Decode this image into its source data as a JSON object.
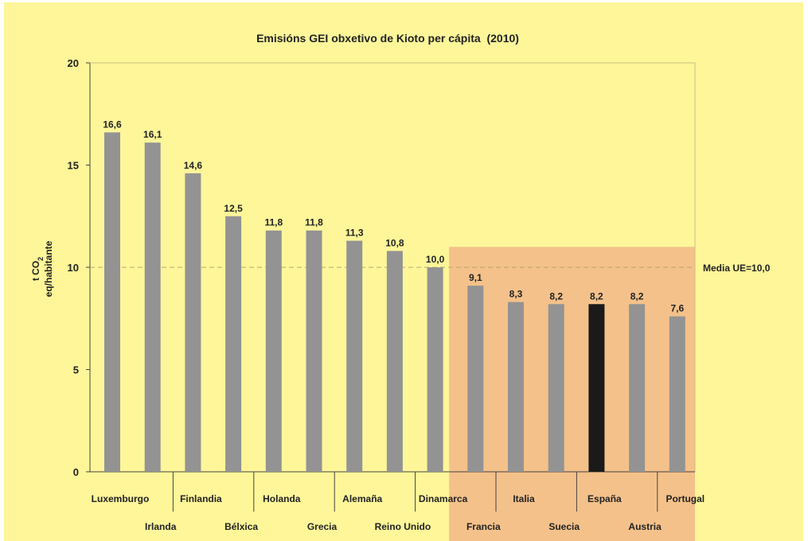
{
  "chart_data": {
    "type": "bar",
    "title": "Emisións GEI obxetivo de Kioto per cápita  (2010)",
    "ylabel_line1": "t CO",
    "ylabel_sub": "2",
    "ylabel_line2": "eq/habitante",
    "xlabel": "",
    "ylim": [
      0,
      20
    ],
    "yticks": [
      0,
      5,
      10,
      15,
      20
    ],
    "categories": [
      "Luxemburgo",
      "Irlanda",
      "Finlandia",
      "Bélxica",
      "Holanda",
      "Grecia",
      "Alemaña",
      "Reino Unido",
      "Dinamarca",
      "Francia",
      "Italia",
      "Suecia",
      "España",
      "Austria",
      "Portugal"
    ],
    "values": [
      16.6,
      16.1,
      14.6,
      12.5,
      11.8,
      11.8,
      11.3,
      10.8,
      10.0,
      9.1,
      8.3,
      8.2,
      8.2,
      8.2,
      7.6
    ],
    "value_labels": [
      "16,6",
      "16,1",
      "14,6",
      "12,5",
      "11,8",
      "11,8",
      "11,3",
      "10,8",
      "10,0",
      "9,1",
      "8,3",
      "8,2",
      "8,2",
      "8,2",
      "7,6"
    ],
    "highlight_category": "España",
    "reference_line": {
      "value": 10.0,
      "label": "Media UE=10,0"
    },
    "shaded_region": {
      "from_category": "Francia",
      "to_category": "Portugal",
      "upper_value": 11.0
    },
    "grid": false,
    "legend": "none",
    "colors": {
      "background": "#fef699",
      "bar": "#939393",
      "bar_highlight": "#1a1a1a",
      "shaded_region": "#f4c18a",
      "reference_line": "#b5a86e",
      "axis": "#444444"
    }
  }
}
